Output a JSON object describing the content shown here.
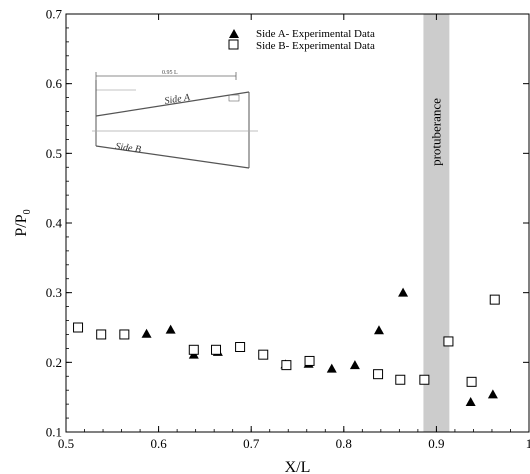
{
  "chart_data": {
    "type": "scatter",
    "xlabel": "X/L",
    "ylabel": "P/P",
    "ylabel_subscript": "0",
    "xlim": [
      0.5,
      1.0
    ],
    "ylim": [
      0.1,
      0.7
    ],
    "x_ticks": [
      "0.5",
      "0.6",
      "0.7",
      "0.8",
      "0.9",
      "1"
    ],
    "x_tick_values": [
      0.5,
      0.6,
      0.7,
      0.8,
      0.9,
      1.0
    ],
    "y_ticks": [
      "0.1",
      "0.2",
      "0.3",
      "0.4",
      "0.5",
      "0.6",
      "0.7"
    ],
    "y_tick_values": [
      0.1,
      0.2,
      0.3,
      0.4,
      0.5,
      0.6,
      0.7
    ],
    "grid": false,
    "legend_position": "top-right",
    "band": {
      "label": "protuberance",
      "x_from": 0.886,
      "x_to": 0.914,
      "color": "#cccccc"
    },
    "inset": {
      "dimension_label": "0.95 L",
      "side_a_label": "Side A",
      "side_b_label": "Side B"
    },
    "series": [
      {
        "name": "Side A- Experimental Data",
        "marker": "triangle",
        "x": [
          0.587,
          0.613,
          0.638,
          0.664,
          0.737,
          0.762,
          0.787,
          0.812,
          0.838,
          0.864,
          0.937,
          0.961
        ],
        "y": [
          0.241,
          0.247,
          0.211,
          0.215,
          0.197,
          0.198,
          0.191,
          0.196,
          0.246,
          0.3,
          0.143,
          0.154
        ]
      },
      {
        "name": "Side B- Experimental Data",
        "marker": "square",
        "x": [
          0.513,
          0.538,
          0.563,
          0.638,
          0.662,
          0.688,
          0.713,
          0.738,
          0.763,
          0.837,
          0.861,
          0.887,
          0.913,
          0.938,
          0.963
        ],
        "y": [
          0.25,
          0.24,
          0.24,
          0.218,
          0.218,
          0.222,
          0.211,
          0.196,
          0.202,
          0.183,
          0.175,
          0.175,
          0.23,
          0.172,
          0.29
        ]
      }
    ]
  }
}
